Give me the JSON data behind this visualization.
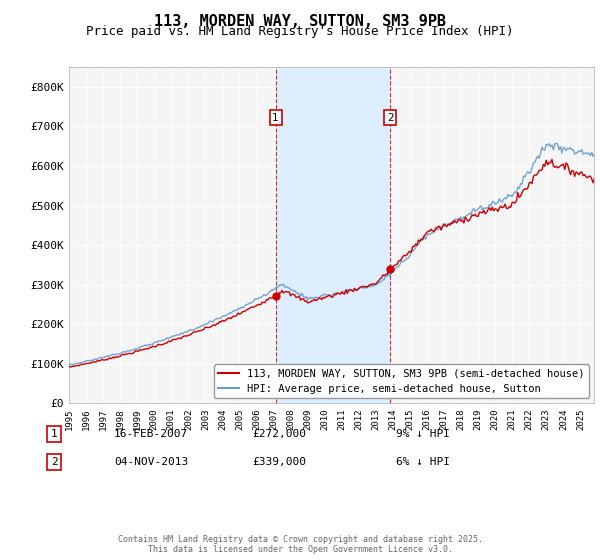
{
  "title": "113, MORDEN WAY, SUTTON, SM3 9PB",
  "subtitle": "Price paid vs. HM Land Registry's House Price Index (HPI)",
  "ylim": [
    0,
    850000
  ],
  "yticks": [
    0,
    100000,
    200000,
    300000,
    400000,
    500000,
    600000,
    700000,
    800000
  ],
  "ytick_labels": [
    "£0",
    "£100K",
    "£200K",
    "£300K",
    "£400K",
    "£500K",
    "£600K",
    "£700K",
    "£800K"
  ],
  "xlim_start": 1995.0,
  "xlim_end": 2025.8,
  "sale1_year": 2007.12,
  "sale1_price": 272000,
  "sale1_label": "16-FEB-2007",
  "sale1_amount": "£272,000",
  "sale1_pct": "9% ↓ HPI",
  "sale2_year": 2013.84,
  "sale2_price": 339000,
  "sale2_label": "04-NOV-2013",
  "sale2_amount": "£339,000",
  "sale2_pct": "6% ↓ HPI",
  "red_color": "#cc0000",
  "blue_color": "#6699cc",
  "shade_color": "#ddeeff",
  "background_color": "#f5f5f5",
  "legend_label_red": "113, MORDEN WAY, SUTTON, SM3 9PB (semi-detached house)",
  "legend_label_blue": "HPI: Average price, semi-detached house, Sutton",
  "footer": "Contains HM Land Registry data © Crown copyright and database right 2025.\nThis data is licensed under the Open Government Licence v3.0.",
  "title_fontsize": 11,
  "subtitle_fontsize": 9,
  "axis_fontsize": 8,
  "legend_fontsize": 7.5
}
